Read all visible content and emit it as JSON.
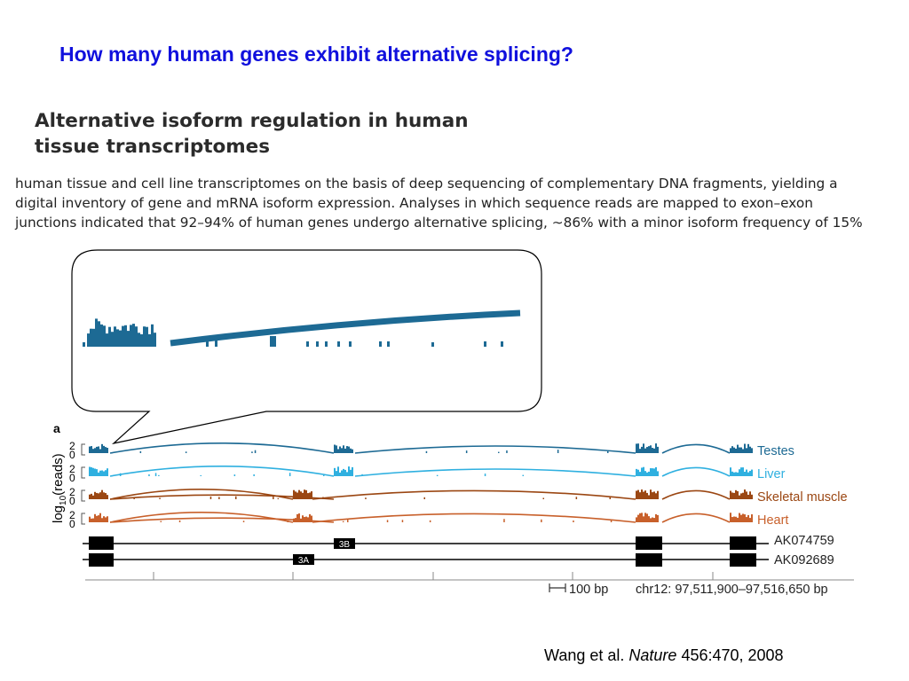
{
  "slide": {
    "title": "How many human genes exhibit alternative splicing?"
  },
  "figure_heading": {
    "line1": "Alternative isoform regulation in human",
    "line2": "tissue transcriptomes"
  },
  "abstract": {
    "line1": "human tissue and cell line transcriptomes on the basis of deep sequencing of complementary DNA fragments, yielding a",
    "line2": "digital inventory of gene and mRNA isoform expression. Analyses in which sequence reads are mapped to exon–exon",
    "line3": "junctions indicated that 92–94% of human genes undergo alternative splicing, ∼86% with a minor isoform frequency of 15%"
  },
  "panel": {
    "label": "a",
    "ylabel_prefix": "log",
    "ylabel_sub": "10",
    "ylabel_suffix": "(reads)",
    "tick_top": "2",
    "tick_bottom": "0"
  },
  "tracks": [
    {
      "name": "Testes",
      "color": "#1d6a94"
    },
    {
      "name": "Liver",
      "color": "#2fb0e0"
    },
    {
      "name": "Skeletal muscle",
      "color": "#9b4713"
    },
    {
      "name": "Heart",
      "color": "#c8602b"
    }
  ],
  "transcripts": [
    {
      "accession": "AK074759",
      "exon_tag": "3B"
    },
    {
      "accession": "AK092689",
      "exon_tag": "3A"
    }
  ],
  "scale": {
    "bar_label": "100 bp",
    "coords": "chr12: 97,511,900–97,516,650 bp"
  },
  "citation": {
    "authors": "Wang et al.",
    "journal": "Nature",
    "details": "456:470, 2008"
  },
  "colors": {
    "title_blue": "#1010dd",
    "testes": "#1d6a94",
    "liver": "#2fb0e0",
    "skeletal_muscle": "#9b4713",
    "heart": "#c8602b"
  }
}
